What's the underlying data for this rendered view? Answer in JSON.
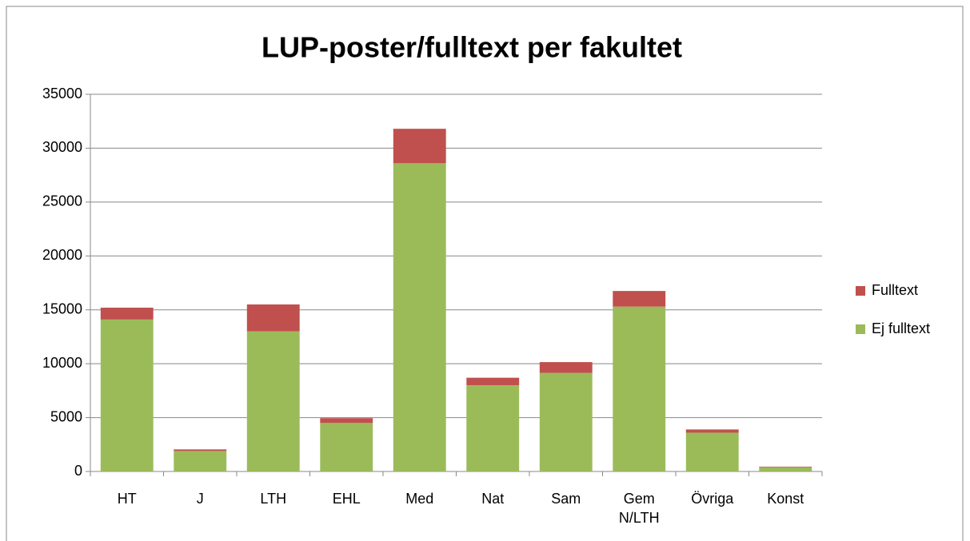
{
  "chart_data": {
    "type": "stacked_bar",
    "title": "LUP-poster/fulltext per fakultet",
    "categories": [
      "HT",
      "J",
      "LTH",
      "EHL",
      "Med",
      "Nat",
      "Sam",
      "Gem N/LTH",
      "Övriga",
      "Konst"
    ],
    "series": [
      {
        "name": "Ej fulltext",
        "color": "#9bbb59",
        "values": [
          14100,
          1900,
          13000,
          4500,
          28600,
          8000,
          9150,
          15300,
          3600,
          400
        ]
      },
      {
        "name": "Fulltext",
        "color": "#c0504d",
        "values": [
          1100,
          150,
          2500,
          450,
          3200,
          700,
          1000,
          1450,
          300,
          50
        ]
      }
    ],
    "ylim": [
      0,
      35000
    ],
    "yticks": [
      0,
      5000,
      10000,
      15000,
      20000,
      25000,
      30000,
      35000
    ],
    "grid": true,
    "legend": "right"
  }
}
